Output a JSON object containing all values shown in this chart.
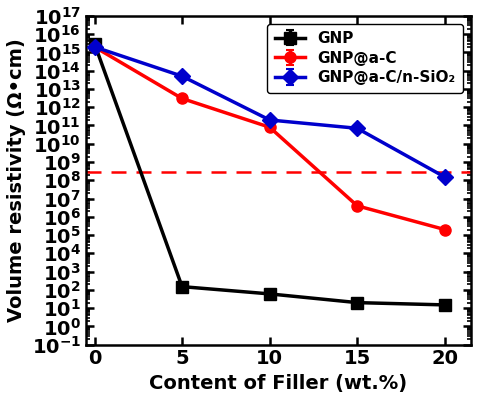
{
  "x": [
    0,
    5,
    10,
    15,
    20
  ],
  "gnp_y": [
    3000000000000000.0,
    150,
    60,
    20,
    15
  ],
  "gnp_yerr_low": [
    300000000000000.0,
    0,
    0,
    0,
    0
  ],
  "gnp_yerr_high": [
    300000000000000.0,
    0,
    0,
    0,
    0
  ],
  "gnpac_y": [
    2000000000000000.0,
    3000000000000.0,
    80000000000.0,
    4000000.0,
    200000.0
  ],
  "gnpac_yerr_low": [
    200000000000000.0,
    0,
    5000000000.0,
    500000.0,
    50000.0
  ],
  "gnpac_yerr_high": [
    200000000000000.0,
    0,
    5000000000.0,
    500000.0,
    50000.0
  ],
  "gnpacsi_y": [
    2000000000000000.0,
    50000000000000.0,
    200000000000.0,
    70000000000.0,
    150000000.0
  ],
  "gnpacsi_yerr_low": [
    200000000000000.0,
    0,
    30000000000.0,
    10000000000.0,
    0
  ],
  "gnpacsi_yerr_high": [
    200000000000000.0,
    0,
    30000000000.0,
    10000000000.0,
    0
  ],
  "dashed_line_y": 300000000.0,
  "ylim_low": 0.1,
  "ylim_high": 1e+17,
  "xlim_low": -0.5,
  "xlim_high": 21.5,
  "xlabel": "Content of Filler (wt.%)",
  "ylabel": "Volume resistivity (Ω•cm)",
  "legend_labels": [
    "GNP",
    "GNP@a-C",
    "GNP@a-C/n-SiO₂"
  ],
  "gnp_color": "#000000",
  "gnpac_color": "#ff0000",
  "gnpacsi_color": "#0000cc",
  "dashed_color": "#ff0000",
  "linewidth": 2.5,
  "markersize": 8,
  "label_fontsize": 14,
  "tick_fontsize": 14,
  "legend_fontsize": 11,
  "figsize": [
    4.78,
    4.0
  ],
  "dpi": 100
}
